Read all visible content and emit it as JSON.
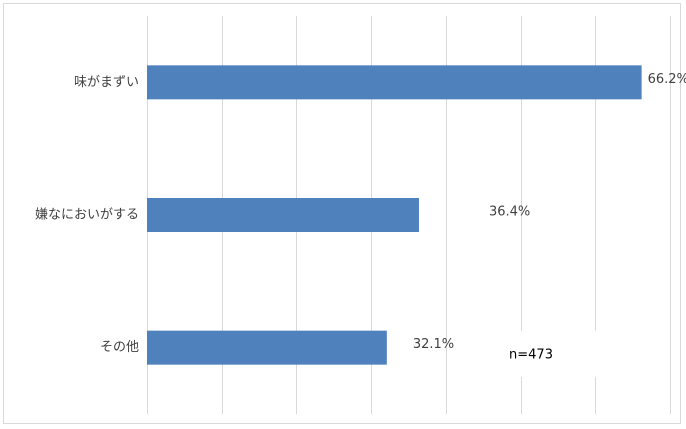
{
  "chart_data": {
    "type": "bar",
    "orientation": "horizontal",
    "categories": [
      "味がまずい",
      "嫌なにおいがする",
      "その他"
    ],
    "values": [
      66.2,
      36.4,
      32.1
    ],
    "data_labels": [
      "66.2%",
      "36.4%",
      "32.1%"
    ],
    "xlim": [
      0,
      70
    ],
    "grid": true,
    "annotation": "n=473",
    "bar_color": "#4f81bd",
    "grid_color": "#d9d9d9"
  }
}
